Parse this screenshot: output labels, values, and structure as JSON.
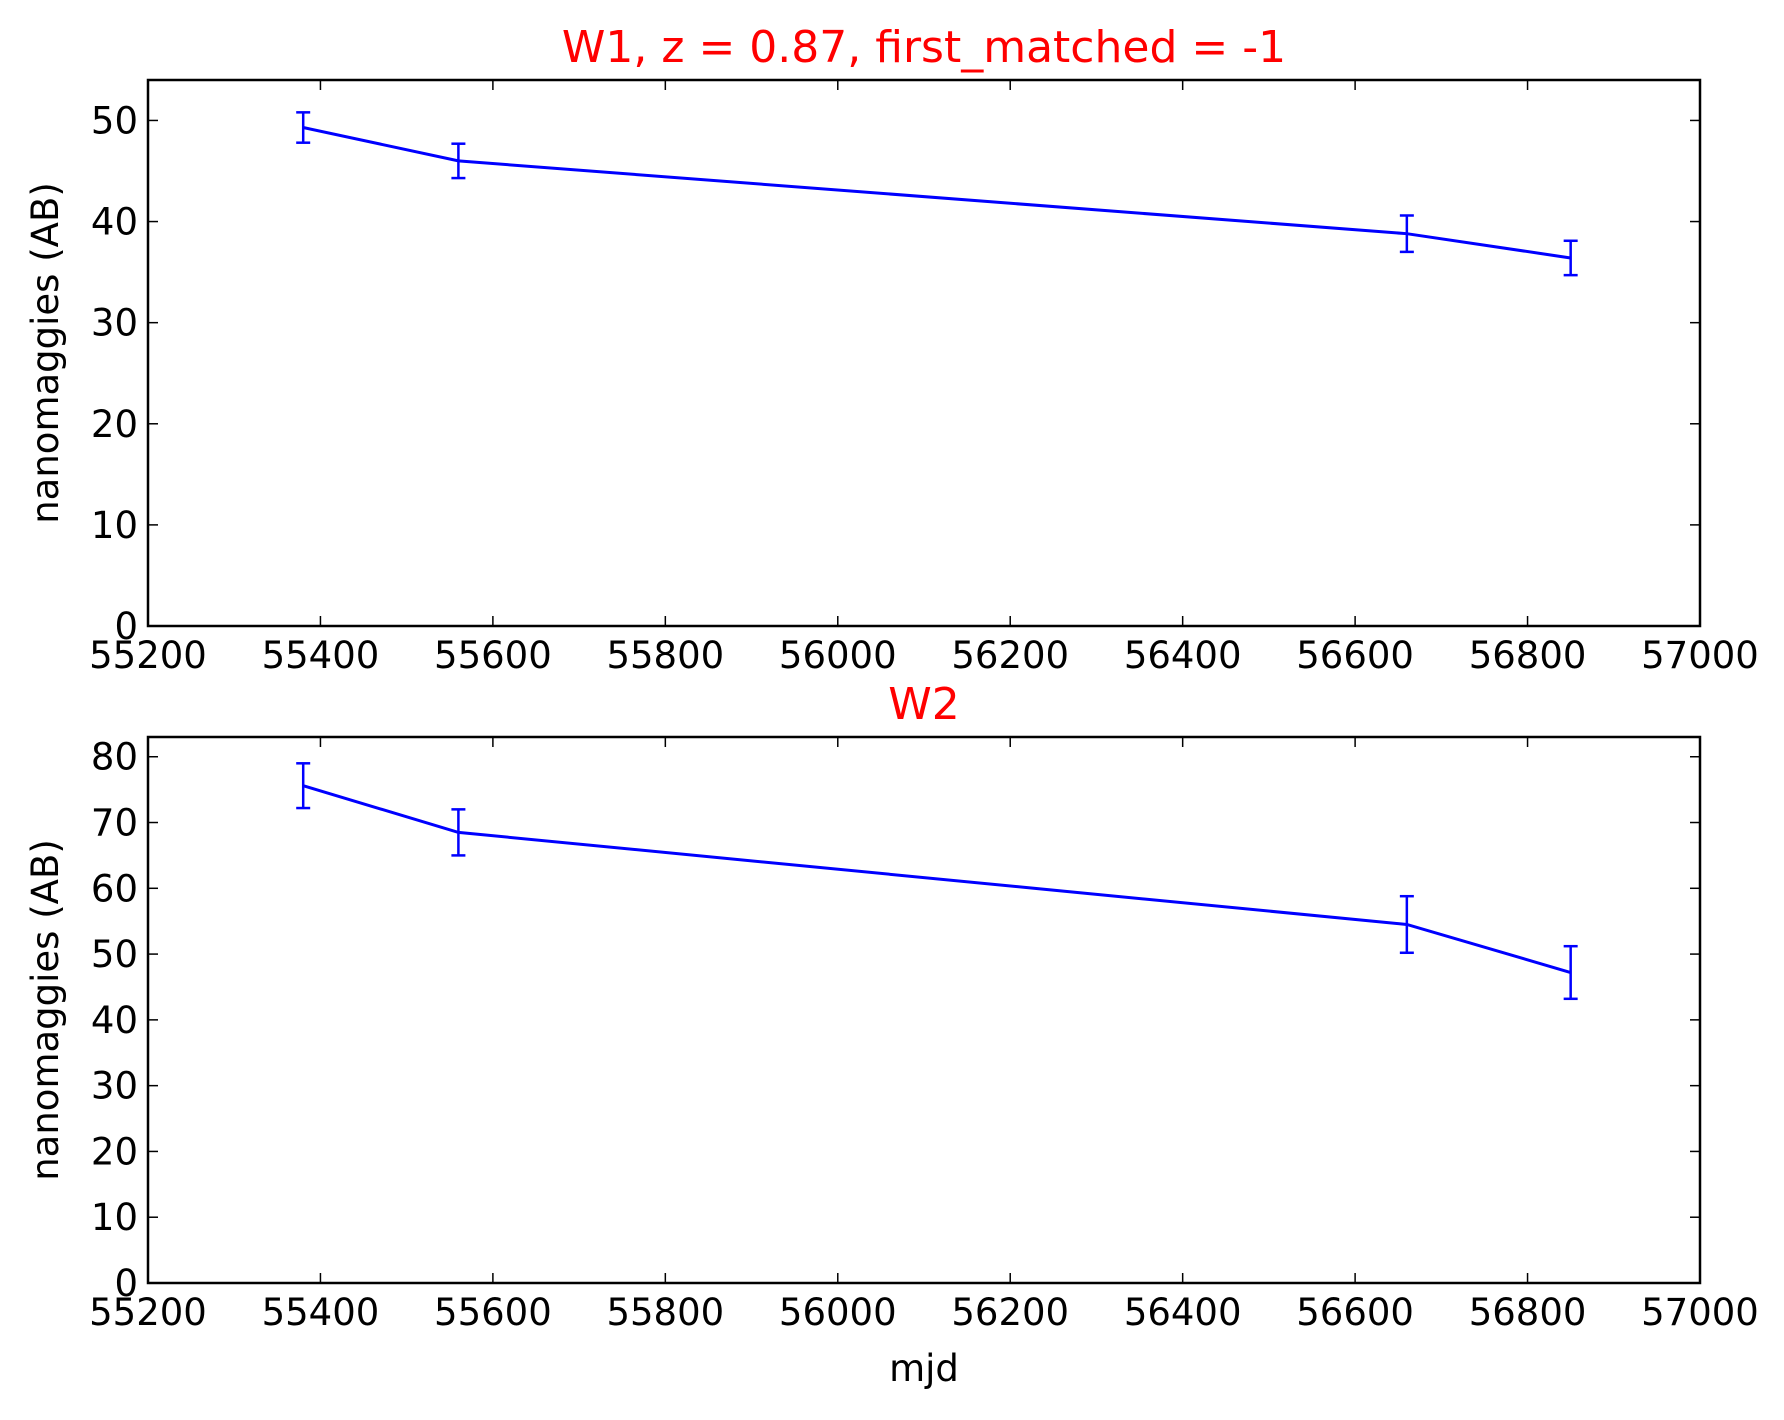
{
  "chart_data": [
    {
      "type": "line",
      "title": "W1, z = 0.87, first_matched = -1",
      "xlabel": "",
      "ylabel": "nanomaggies (AB)",
      "xlim": [
        55200,
        57000
      ],
      "ylim": [
        0,
        54
      ],
      "x_ticks": [
        "55200",
        "55400",
        "55600",
        "55800",
        "56000",
        "56200",
        "56400",
        "56600",
        "56800",
        "57000"
      ],
      "y_ticks": [
        "0",
        "10",
        "20",
        "30",
        "40",
        "50"
      ],
      "grid": false,
      "series": [
        {
          "color": "#0000ff",
          "x": [
            55380,
            55560,
            56660,
            56850
          ],
          "y": [
            49.3,
            46.0,
            38.8,
            36.4
          ],
          "yerr": [
            1.5,
            1.7,
            1.8,
            1.7
          ]
        }
      ]
    },
    {
      "type": "line",
      "title": "W2",
      "xlabel": "mjd",
      "ylabel": "nanomaggies (AB)",
      "xlim": [
        55200,
        57000
      ],
      "ylim": [
        0,
        83
      ],
      "x_ticks": [
        "55200",
        "55400",
        "55600",
        "55800",
        "56000",
        "56200",
        "56400",
        "56600",
        "56800",
        "57000"
      ],
      "y_ticks": [
        "0",
        "10",
        "20",
        "30",
        "40",
        "50",
        "60",
        "70",
        "80"
      ],
      "grid": false,
      "series": [
        {
          "color": "#0000ff",
          "x": [
            55380,
            55560,
            56660,
            56850
          ],
          "y": [
            75.6,
            68.5,
            54.5,
            47.2
          ],
          "yerr": [
            3.4,
            3.5,
            4.3,
            4.0
          ]
        }
      ]
    }
  ],
  "colors": {
    "title": "#ff0000",
    "series": "#0000ff",
    "axes": "#000000"
  }
}
